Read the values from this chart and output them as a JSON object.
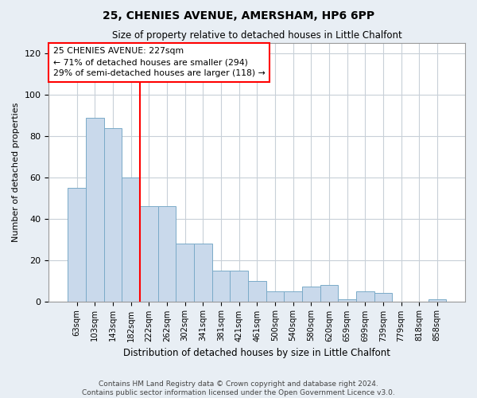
{
  "title": "25, CHENIES AVENUE, AMERSHAM, HP6 6PP",
  "subtitle": "Size of property relative to detached houses in Little Chalfont",
  "xlabel": "Distribution of detached houses by size in Little Chalfont",
  "ylabel": "Number of detached properties",
  "categories": [
    "63sqm",
    "103sqm",
    "143sqm",
    "182sqm",
    "222sqm",
    "262sqm",
    "302sqm",
    "341sqm",
    "381sqm",
    "421sqm",
    "461sqm",
    "500sqm",
    "540sqm",
    "580sqm",
    "620sqm",
    "659sqm",
    "699sqm",
    "739sqm",
    "779sqm",
    "818sqm",
    "858sqm"
  ],
  "values": [
    55,
    89,
    84,
    60,
    46,
    46,
    28,
    28,
    15,
    15,
    10,
    5,
    5,
    7,
    8,
    1,
    5,
    4,
    0,
    0,
    1
  ],
  "bar_color": "#c9d9eb",
  "bar_edge_color": "#7aaac8",
  "highlight_line_index": 4,
  "annotation_text": "25 CHENIES AVENUE: 227sqm\n← 71% of detached houses are smaller (294)\n29% of semi-detached houses are larger (118) →",
  "annotation_box_color": "white",
  "annotation_box_edge_color": "red",
  "ylim": [
    0,
    125
  ],
  "yticks": [
    0,
    20,
    40,
    60,
    80,
    100,
    120
  ],
  "footer_line1": "Contains HM Land Registry data © Crown copyright and database right 2024.",
  "footer_line2": "Contains public sector information licensed under the Open Government Licence v3.0.",
  "background_color": "#e8eef4",
  "plot_background_color": "white",
  "grid_color": "#c8d0d8"
}
